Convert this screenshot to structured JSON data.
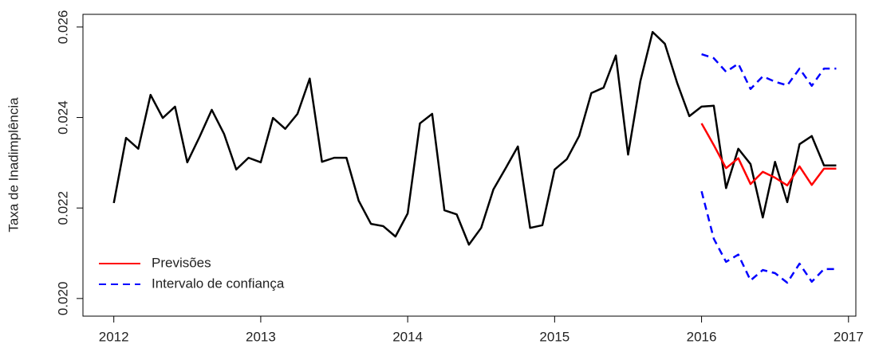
{
  "chart_data": {
    "type": "line",
    "ylabel": "Taxa de Inadimplência",
    "xlim": [
      2011.79,
      2017.05
    ],
    "ylim": [
      0.01961,
      0.02628
    ],
    "xticks": [
      2012,
      2013,
      2014,
      2015,
      2016,
      2017
    ],
    "yticks": [
      {
        "value": 0.02,
        "label": "0.020"
      },
      0.022,
      0.024,
      0.026
    ],
    "legend_position": "bottomleft",
    "series": [
      {
        "color": "#000000",
        "dashed": false,
        "x": [
          2012,
          2012.0833,
          2012.1667,
          2012.25,
          2012.3333,
          2012.4167,
          2012.5,
          2012.5833,
          2012.6667,
          2012.75,
          2012.8333,
          2012.9167,
          2013,
          2013.0833,
          2013.1667,
          2013.25,
          2013.3333,
          2013.4167,
          2013.5,
          2013.5833,
          2013.6667,
          2013.75,
          2013.8333,
          2013.9167,
          2014,
          2014.0833,
          2014.1667,
          2014.25,
          2014.3333,
          2014.4167,
          2014.5,
          2014.5833,
          2014.6667,
          2014.75,
          2014.8333,
          2014.9167,
          2015,
          2015.0833,
          2015.1667,
          2015.25,
          2015.3333,
          2015.4167,
          2015.5,
          2015.5833,
          2015.6667,
          2015.75,
          2015.8333,
          2015.9167,
          2016,
          2016.0833,
          2016.1667,
          2016.25,
          2016.3333,
          2016.4167,
          2016.5,
          2016.5833,
          2016.6667,
          2016.75,
          2016.8333,
          2016.9167
        ],
        "values": [
          0.02211,
          0.02355,
          0.02331,
          0.0245,
          0.02399,
          0.02424,
          0.02301,
          0.02357,
          0.02417,
          0.02364,
          0.02285,
          0.02311,
          0.02301,
          0.02399,
          0.02375,
          0.02408,
          0.02486,
          0.02302,
          0.02311,
          0.02311,
          0.02216,
          0.02165,
          0.0216,
          0.02137,
          0.02188,
          0.02387,
          0.02408,
          0.02195,
          0.02186,
          0.02119,
          0.02156,
          0.02241,
          0.02288,
          0.02336,
          0.02156,
          0.02162,
          0.02285,
          0.02308,
          0.02359,
          0.02454,
          0.02466,
          0.02537,
          0.02318,
          0.0248,
          0.02589,
          0.02563,
          0.02477,
          0.02403,
          0.02424,
          0.02426,
          0.02244,
          0.02331,
          0.02297,
          0.02179,
          0.02302,
          0.02213,
          0.02341,
          0.02359,
          0.02294,
          0.02294
        ]
      },
      {
        "name": "Previsões",
        "color": "#ff0000",
        "dashed": false,
        "x": [
          2016,
          2016.0833,
          2016.1667,
          2016.25,
          2016.3333,
          2016.4167,
          2016.5,
          2016.5833,
          2016.6667,
          2016.75,
          2016.8333,
          2016.9167
        ],
        "values": [
          0.02387,
          0.02339,
          0.02288,
          0.0231,
          0.02253,
          0.0228,
          0.02267,
          0.0225,
          0.02292,
          0.02251,
          0.02287,
          0.02287
        ]
      },
      {
        "name": "Intervalo de confiança",
        "color": "#0000ff",
        "dashed": true,
        "x": [
          2016,
          2016.0833,
          2016.1667,
          2016.25,
          2016.3333,
          2016.4167,
          2016.5,
          2016.5833,
          2016.6667,
          2016.75,
          2016.8333,
          2016.9167
        ],
        "values": [
          0.0254,
          0.02531,
          0.02501,
          0.02519,
          0.02463,
          0.02491,
          0.02479,
          0.02471,
          0.02508,
          0.0247,
          0.02508,
          0.02508
        ]
      },
      {
        "color": "#0000ff",
        "dashed": true,
        "x": [
          2016,
          2016.0833,
          2016.1667,
          2016.25,
          2016.3333,
          2016.4167,
          2016.5,
          2016.5833,
          2016.6667,
          2016.75,
          2016.8333,
          2016.9167
        ],
        "values": [
          0.02237,
          0.02132,
          0.02081,
          0.02097,
          0.0204,
          0.02063,
          0.02056,
          0.02035,
          0.02077,
          0.02037,
          0.02065,
          0.02065
        ]
      }
    ]
  }
}
